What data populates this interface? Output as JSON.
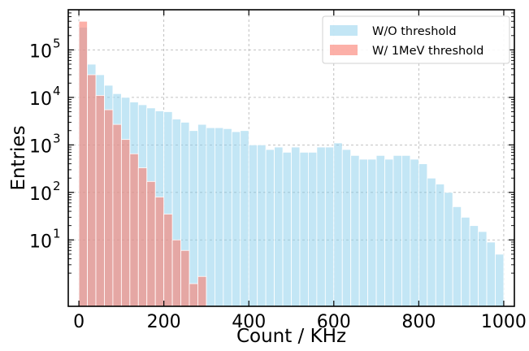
{
  "chart_data": {
    "type": "bar",
    "xlabel": "Count / KHz",
    "ylabel": "Entries",
    "xlim": [
      -25,
      1025
    ],
    "ylim": [
      0.4,
      700000
    ],
    "yscale": "log",
    "bin_width": 20,
    "grid": true,
    "legend_position": "top-right",
    "x_ticks": [
      {
        "value": 0,
        "label": "0"
      },
      {
        "value": 200,
        "label": "200"
      },
      {
        "value": 400,
        "label": "400"
      },
      {
        "value": 600,
        "label": "600"
      },
      {
        "value": 800,
        "label": "800"
      },
      {
        "value": 1000,
        "label": "1000"
      }
    ],
    "y_ticks": [
      {
        "value": 10,
        "base": "10",
        "exp": "1"
      },
      {
        "value": 100,
        "base": "10",
        "exp": "2"
      },
      {
        "value": 1000,
        "base": "10",
        "exp": "3"
      },
      {
        "value": 10000,
        "base": "10",
        "exp": "4"
      },
      {
        "value": 100000,
        "base": "10",
        "exp": "5"
      }
    ],
    "series": [
      {
        "name": "W/O threshold",
        "color": "#87ceeb",
        "bin_start": [
          0,
          20,
          40,
          60,
          80,
          100,
          120,
          140,
          160,
          180,
          200,
          220,
          240,
          260,
          280,
          300,
          320,
          340,
          360,
          380,
          400,
          420,
          440,
          460,
          480,
          500,
          520,
          540,
          560,
          580,
          600,
          620,
          640,
          660,
          680,
          700,
          720,
          740,
          760,
          780,
          800,
          820,
          840,
          860,
          880,
          900,
          920,
          940,
          960,
          980
        ],
        "values": [
          300000,
          50000,
          30000,
          18000,
          12000,
          10000,
          8000,
          7000,
          6000,
          5200,
          5000,
          3500,
          3000,
          2000,
          2700,
          2300,
          2300,
          2200,
          1900,
          2000,
          1000,
          1000,
          800,
          900,
          700,
          900,
          700,
          700,
          900,
          900,
          1100,
          800,
          600,
          500,
          500,
          600,
          500,
          600,
          600,
          500,
          400,
          200,
          150,
          100,
          50,
          30,
          20,
          15,
          9,
          5
        ]
      },
      {
        "name": "W/ 1MeV threshold",
        "color": "#fa8072",
        "bin_start": [
          0,
          20,
          40,
          60,
          80,
          100,
          120,
          140,
          160,
          180,
          200,
          220,
          240,
          260,
          280
        ],
        "values": [
          400000,
          30000,
          11000,
          5500,
          2700,
          1300,
          650,
          330,
          170,
          80,
          35,
          10,
          6,
          1.2,
          1.7
        ]
      }
    ]
  }
}
